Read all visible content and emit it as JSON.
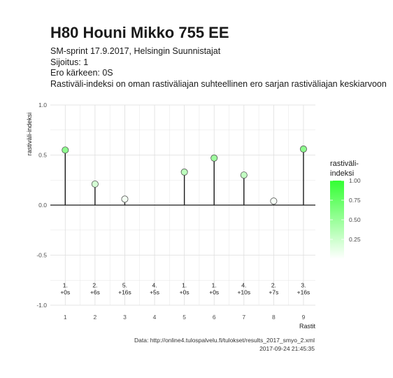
{
  "title": "H80 Houni Mikko 755 EE",
  "subtitle_lines": [
    "SM-sprint 17.9.2017, Helsingin Suunnistajat",
    "Sijoitus: 1",
    "Ero kärkeen: 0S",
    "Rastiväli-indeksi on oman rastiväliajan suhteellinen ero sarjan rastiväliajan keskiarvoon"
  ],
  "caption": {
    "source": "Data: http://online4.tulospalvelu.fi/tulokset/results_2017_smyo_2.xml",
    "timestamp": "2017-09-24 21:45:35"
  },
  "colors": {
    "high": "#33ff33",
    "low": "#ffffff",
    "stem": "#1a1a1a",
    "grid": "#dedede"
  },
  "chart_data": {
    "type": "scatter",
    "style": "lollipop",
    "xlabel": "Rastit",
    "ylabel": "rastiväli-indeksi",
    "x": [
      1,
      2,
      3,
      4,
      5,
      6,
      7,
      8,
      9
    ],
    "y": [
      0.55,
      0.21,
      0.06,
      null,
      0.33,
      0.47,
      0.3,
      0.04,
      0.56
    ],
    "point_labels": [
      [
        "1.",
        "+0s"
      ],
      [
        "2.",
        "+6s"
      ],
      [
        "5.",
        "+16s"
      ],
      [
        "4.",
        "+5s"
      ],
      [
        "1.",
        "+0s"
      ],
      [
        "1.",
        "+0s"
      ],
      [
        "4.",
        "+10s"
      ],
      [
        "2.",
        "+7s"
      ],
      [
        "3.",
        "+16s"
      ]
    ],
    "xlim": [
      0.5,
      9.4
    ],
    "ylim": [
      -1.0,
      1.0
    ],
    "xticks": [
      1,
      2,
      3,
      4,
      5,
      6,
      7,
      8,
      9
    ],
    "yticks": [
      -1.0,
      -0.5,
      0.0,
      0.5,
      1.0
    ],
    "ytick_labels": [
      "-1.0",
      "-0.5",
      "0.0",
      "0.5",
      "1.0"
    ],
    "grid": true,
    "legend": {
      "title_lines": [
        "rastiväli-",
        "indeksi"
      ],
      "placement": "right",
      "ticks": [
        0.25,
        0.5,
        0.75,
        1.0
      ],
      "tick_labels": [
        "0.25",
        "0.50",
        "0.75",
        "1.00"
      ],
      "range": [
        0,
        1
      ]
    }
  }
}
